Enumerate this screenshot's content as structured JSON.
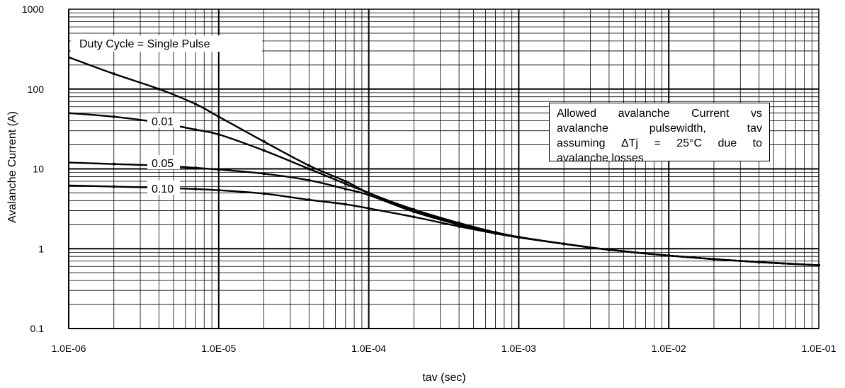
{
  "chart_data": {
    "type": "line",
    "title": "",
    "xlabel": "tav (sec)",
    "ylabel": "Avalanche Current (A)",
    "x_scale": "log",
    "y_scale": "log",
    "xlim": [
      1e-06,
      0.1
    ],
    "ylim": [
      0.1,
      1000
    ],
    "grid": true,
    "x_tick_labels": [
      "1.0E-06",
      "1.0E-05",
      "1.0E-04",
      "1.0E-03",
      "1.0E-02",
      "1.0E-01"
    ],
    "y_tick_labels": [
      "0.1",
      "1",
      "10",
      "100",
      "1000"
    ],
    "legend_label": "Duty Cycle = Single Pulse",
    "note_lines": [
      "Allowed avalanche Current vs",
      "avalanche pulsewidth, tav",
      "assuming ΔTj = 25°C due to",
      "avalanche losses"
    ],
    "series": [
      {
        "name": "Single Pulse",
        "x": [
          1e-06,
          2e-06,
          4e-06,
          7e-06,
          1e-05,
          2e-05,
          4e-05,
          7e-05,
          0.0001,
          0.0002,
          0.0004,
          0.0007,
          0.001,
          0.002,
          0.004,
          0.01,
          0.02,
          0.04,
          0.1
        ],
        "y": [
          250,
          155,
          100,
          65,
          45,
          22,
          11,
          7,
          5,
          3.1,
          2.1,
          1.6,
          1.4,
          1.15,
          0.97,
          0.82,
          0.74,
          0.68,
          0.62
        ]
      },
      {
        "name": "0.01",
        "x": [
          1e-06,
          2e-06,
          4e-06,
          7e-06,
          1e-05,
          2e-05,
          4e-05,
          7e-05,
          0.0001,
          0.0002,
          0.0004,
          0.0007,
          0.001,
          0.002,
          0.004,
          0.01,
          0.02,
          0.04,
          0.1
        ],
        "y": [
          50,
          45,
          38,
          31,
          27,
          17,
          10,
          6.5,
          5,
          3.0,
          2.05,
          1.6,
          1.4,
          1.15,
          0.97,
          0.82,
          0.74,
          0.68,
          0.62
        ]
      },
      {
        "name": "0.05",
        "x": [
          1e-06,
          2e-06,
          4e-06,
          7e-06,
          1e-05,
          2e-05,
          4e-05,
          7e-05,
          0.0001,
          0.0002,
          0.0004,
          0.0007,
          0.001,
          0.002,
          0.004,
          0.01,
          0.02,
          0.04,
          0.1
        ],
        "y": [
          12,
          11.5,
          11,
          10.3,
          9.8,
          8.7,
          7.2,
          5.6,
          4.7,
          2.9,
          2.0,
          1.6,
          1.4,
          1.15,
          0.97,
          0.82,
          0.74,
          0.68,
          0.62
        ]
      },
      {
        "name": "0.10",
        "x": [
          1e-06,
          2e-06,
          4e-06,
          7e-06,
          1e-05,
          2e-05,
          4e-05,
          7e-05,
          0.0001,
          0.0002,
          0.0004,
          0.0007,
          0.001,
          0.002,
          0.004,
          0.01,
          0.02,
          0.04,
          0.1
        ],
        "y": [
          6.2,
          6.0,
          5.8,
          5.6,
          5.4,
          4.9,
          4.1,
          3.6,
          3.2,
          2.5,
          1.9,
          1.55,
          1.38,
          1.15,
          0.97,
          0.82,
          0.74,
          0.68,
          0.62
        ]
      }
    ],
    "series_labels": [
      {
        "text": "0.01",
        "series": "0.01"
      },
      {
        "text": "0.05",
        "series": "0.05"
      },
      {
        "text": "0.10",
        "series": "0.10"
      }
    ]
  }
}
